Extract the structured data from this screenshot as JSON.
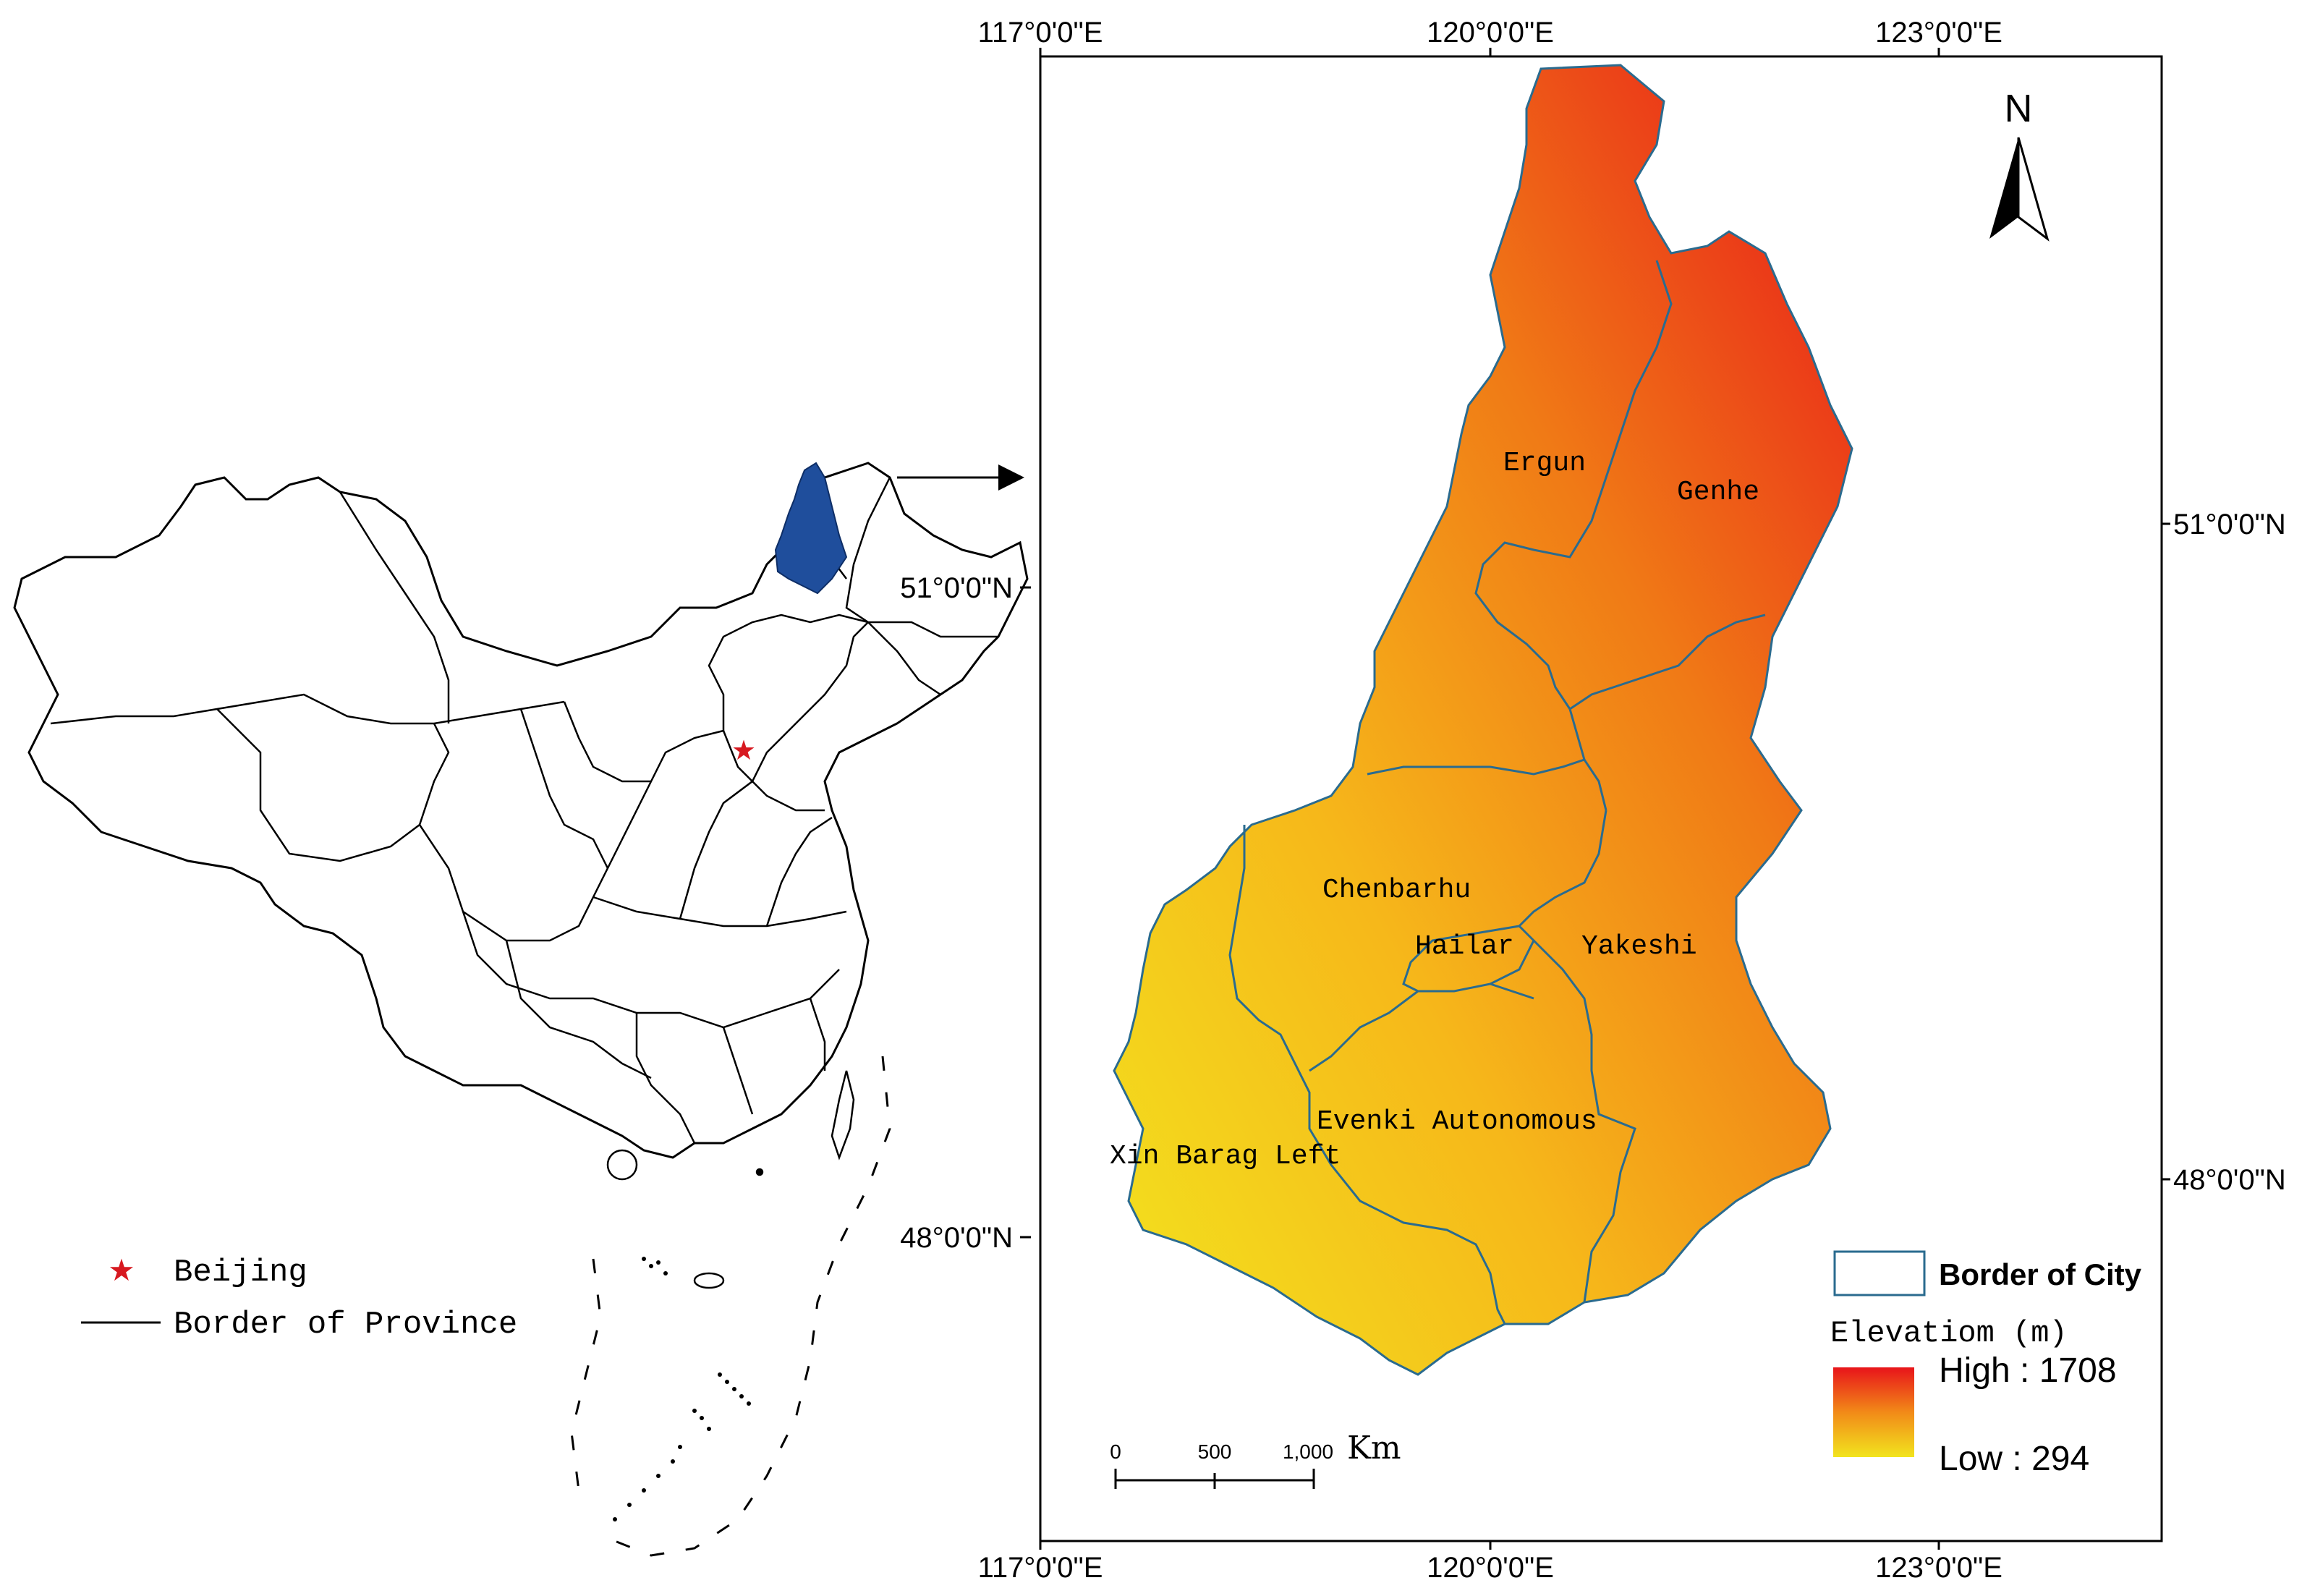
{
  "china_map": {
    "legend": {
      "capital_label": "Beijing",
      "border_label": "Border of Province"
    },
    "lat_label_top": "51°0'0\"N",
    "lat_label_bottom": "48°0'0\"N"
  },
  "detail_map": {
    "lon_labels_top": [
      "117°0'0\"E",
      "120°0'0\"E",
      "123°0'0\"E"
    ],
    "lon_labels_bottom": [
      "117°0'0\"E",
      "120°0'0\"E",
      "123°0'0\"E"
    ],
    "lat_labels_right": [
      "51°0'0\"N",
      "48°0'0\"N"
    ],
    "north_arrow_label": "N",
    "regions": [
      "Ergun",
      "Genhe",
      "Chenbarhu",
      "Hailar",
      "Yakeshi",
      "Evenki Autonomous",
      "Xin Barag Left"
    ],
    "legend": {
      "border_city_label": "Border of City",
      "elevation_title": "Elevatiom (m)",
      "high_label": "High : 1708",
      "low_label": "Low :  294",
      "colors": {
        "high": "#e8141a",
        "low": "#f2e41e"
      }
    },
    "scale_bar": {
      "ticks": [
        "0",
        "500",
        "1,000"
      ],
      "unit": "Km"
    }
  }
}
